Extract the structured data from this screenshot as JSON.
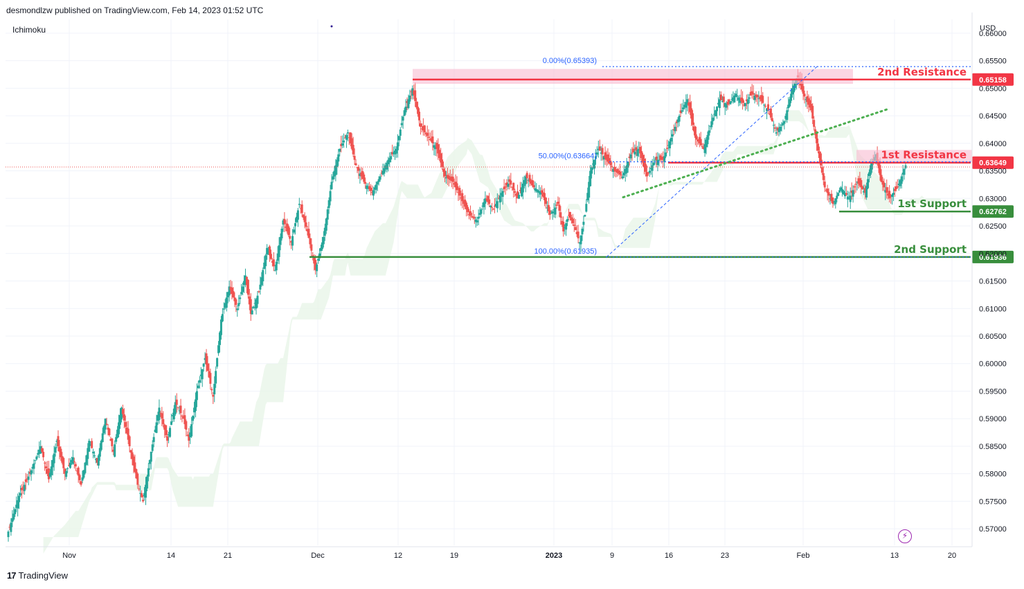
{
  "header": {
    "published_by": "desmondlzw published on TradingView.com, Feb 14, 2023 01:52 UTC",
    "indicator": "Ichimoku",
    "currency": "USD"
  },
  "footer": {
    "brand": "TradingView",
    "logo": "17"
  },
  "colors": {
    "up": "#26a69a",
    "down": "#ef5350",
    "resistance": "#f23645",
    "support": "#388e3c",
    "fib": "#2962ff",
    "trendline": "#4caf50",
    "cloud_green": "#e8f5e9",
    "cloud_red": "#ffebee"
  },
  "chart_data": {
    "type": "candlestick",
    "y_axis": {
      "min": 0.567,
      "max": 0.6625,
      "ticks": [
        "0.66000",
        "0.65500",
        "0.65000",
        "0.64500",
        "0.64000",
        "0.63500",
        "0.63000",
        "0.62500",
        "0.62000",
        "0.61500",
        "0.61000",
        "0.60500",
        "0.60000",
        "0.59500",
        "0.59000",
        "0.58500",
        "0.58000",
        "0.57500",
        "0.57000"
      ]
    },
    "x_axis": {
      "labels": [
        "Nov",
        "14",
        "21",
        "Dec",
        "12",
        "19",
        "2023",
        "9",
        "16",
        "23",
        "Feb",
        "13",
        "20"
      ]
    },
    "levels": [
      {
        "label": "2nd Resistance",
        "value": 0.65158,
        "price_label": "0.65158",
        "kind": "resistance"
      },
      {
        "label": "1st Resistance",
        "value": 0.63649,
        "price_label": "0.63649",
        "kind": "resistance"
      },
      {
        "label": "1st Support",
        "value": 0.62762,
        "price_label": "0.62762",
        "kind": "support"
      },
      {
        "label": "2nd Support",
        "value": 0.61936,
        "price_label": "0.61936",
        "kind": "support"
      }
    ],
    "fibonacci": [
      {
        "label": "0.00%(0.65393)",
        "value": 0.65393
      },
      {
        "label": "50.00%(0.63664)",
        "value": 0.63664
      },
      {
        "label": "100.00%(0.61935)",
        "value": 0.61935
      }
    ],
    "current_price": 0.6357,
    "series_close_path": [
      [
        0,
        0.5695
      ],
      [
        8,
        0.576
      ],
      [
        16,
        0.58
      ],
      [
        24,
        0.585
      ],
      [
        30,
        0.579
      ],
      [
        36,
        0.586
      ],
      [
        42,
        0.58
      ],
      [
        48,
        0.583
      ],
      [
        54,
        0.578
      ],
      [
        60,
        0.586
      ],
      [
        66,
        0.582
      ],
      [
        72,
        0.59
      ],
      [
        78,
        0.584
      ],
      [
        84,
        0.592
      ],
      [
        90,
        0.585
      ],
      [
        96,
        0.578
      ],
      [
        100,
        0.575
      ],
      [
        106,
        0.584
      ],
      [
        112,
        0.592
      ],
      [
        118,
        0.586
      ],
      [
        124,
        0.593
      ],
      [
        130,
        0.59
      ],
      [
        134,
        0.586
      ],
      [
        140,
        0.595
      ],
      [
        146,
        0.601
      ],
      [
        152,
        0.594
      ],
      [
        158,
        0.608
      ],
      [
        164,
        0.614
      ],
      [
        170,
        0.61
      ],
      [
        176,
        0.616
      ],
      [
        180,
        0.609
      ],
      [
        186,
        0.613
      ],
      [
        192,
        0.621
      ],
      [
        198,
        0.617
      ],
      [
        204,
        0.626
      ],
      [
        210,
        0.622
      ],
      [
        216,
        0.629
      ],
      [
        222,
        0.624
      ],
      [
        228,
        0.617
      ],
      [
        234,
        0.623
      ],
      [
        240,
        0.633
      ],
      [
        246,
        0.639
      ],
      [
        252,
        0.642
      ],
      [
        258,
        0.636
      ],
      [
        264,
        0.633
      ],
      [
        270,
        0.631
      ],
      [
        276,
        0.634
      ],
      [
        282,
        0.637
      ],
      [
        288,
        0.639
      ],
      [
        294,
        0.646
      ],
      [
        300,
        0.65
      ],
      [
        306,
        0.643
      ],
      [
        312,
        0.641
      ],
      [
        318,
        0.639
      ],
      [
        324,
        0.634
      ],
      [
        330,
        0.633
      ],
      [
        336,
        0.63
      ],
      [
        342,
        0.627
      ],
      [
        348,
        0.626
      ],
      [
        354,
        0.63
      ],
      [
        360,
        0.628
      ],
      [
        366,
        0.631
      ],
      [
        372,
        0.633
      ],
      [
        378,
        0.63
      ],
      [
        384,
        0.634
      ],
      [
        390,
        0.632
      ],
      [
        396,
        0.631
      ],
      [
        402,
        0.627
      ],
      [
        408,
        0.629
      ],
      [
        412,
        0.624
      ],
      [
        416,
        0.627
      ],
      [
        420,
        0.625
      ],
      [
        424,
        0.622
      ],
      [
        428,
        0.627
      ],
      [
        432,
        0.635
      ],
      [
        438,
        0.639
      ],
      [
        444,
        0.637
      ],
      [
        450,
        0.635
      ],
      [
        456,
        0.634
      ],
      [
        462,
        0.638
      ],
      [
        468,
        0.639
      ],
      [
        474,
        0.634
      ],
      [
        480,
        0.637
      ],
      [
        486,
        0.637
      ],
      [
        492,
        0.641
      ],
      [
        498,
        0.645
      ],
      [
        504,
        0.648
      ],
      [
        510,
        0.641
      ],
      [
        516,
        0.639
      ],
      [
        522,
        0.644
      ],
      [
        528,
        0.648
      ],
      [
        534,
        0.647
      ],
      [
        540,
        0.649
      ],
      [
        546,
        0.647
      ],
      [
        552,
        0.649
      ],
      [
        558,
        0.648
      ],
      [
        564,
        0.646
      ],
      [
        570,
        0.642
      ],
      [
        576,
        0.644
      ],
      [
        582,
        0.65
      ],
      [
        586,
        0.652
      ],
      [
        590,
        0.649
      ],
      [
        596,
        0.646
      ],
      [
        600,
        0.64
      ],
      [
        606,
        0.632
      ],
      [
        612,
        0.629
      ],
      [
        618,
        0.632
      ],
      [
        624,
        0.63
      ],
      [
        630,
        0.633
      ],
      [
        636,
        0.631
      ],
      [
        640,
        0.636
      ],
      [
        644,
        0.638
      ],
      [
        648,
        0.633
      ],
      [
        654,
        0.63
      ],
      [
        660,
        0.632
      ],
      [
        666,
        0.636
      ]
    ]
  }
}
